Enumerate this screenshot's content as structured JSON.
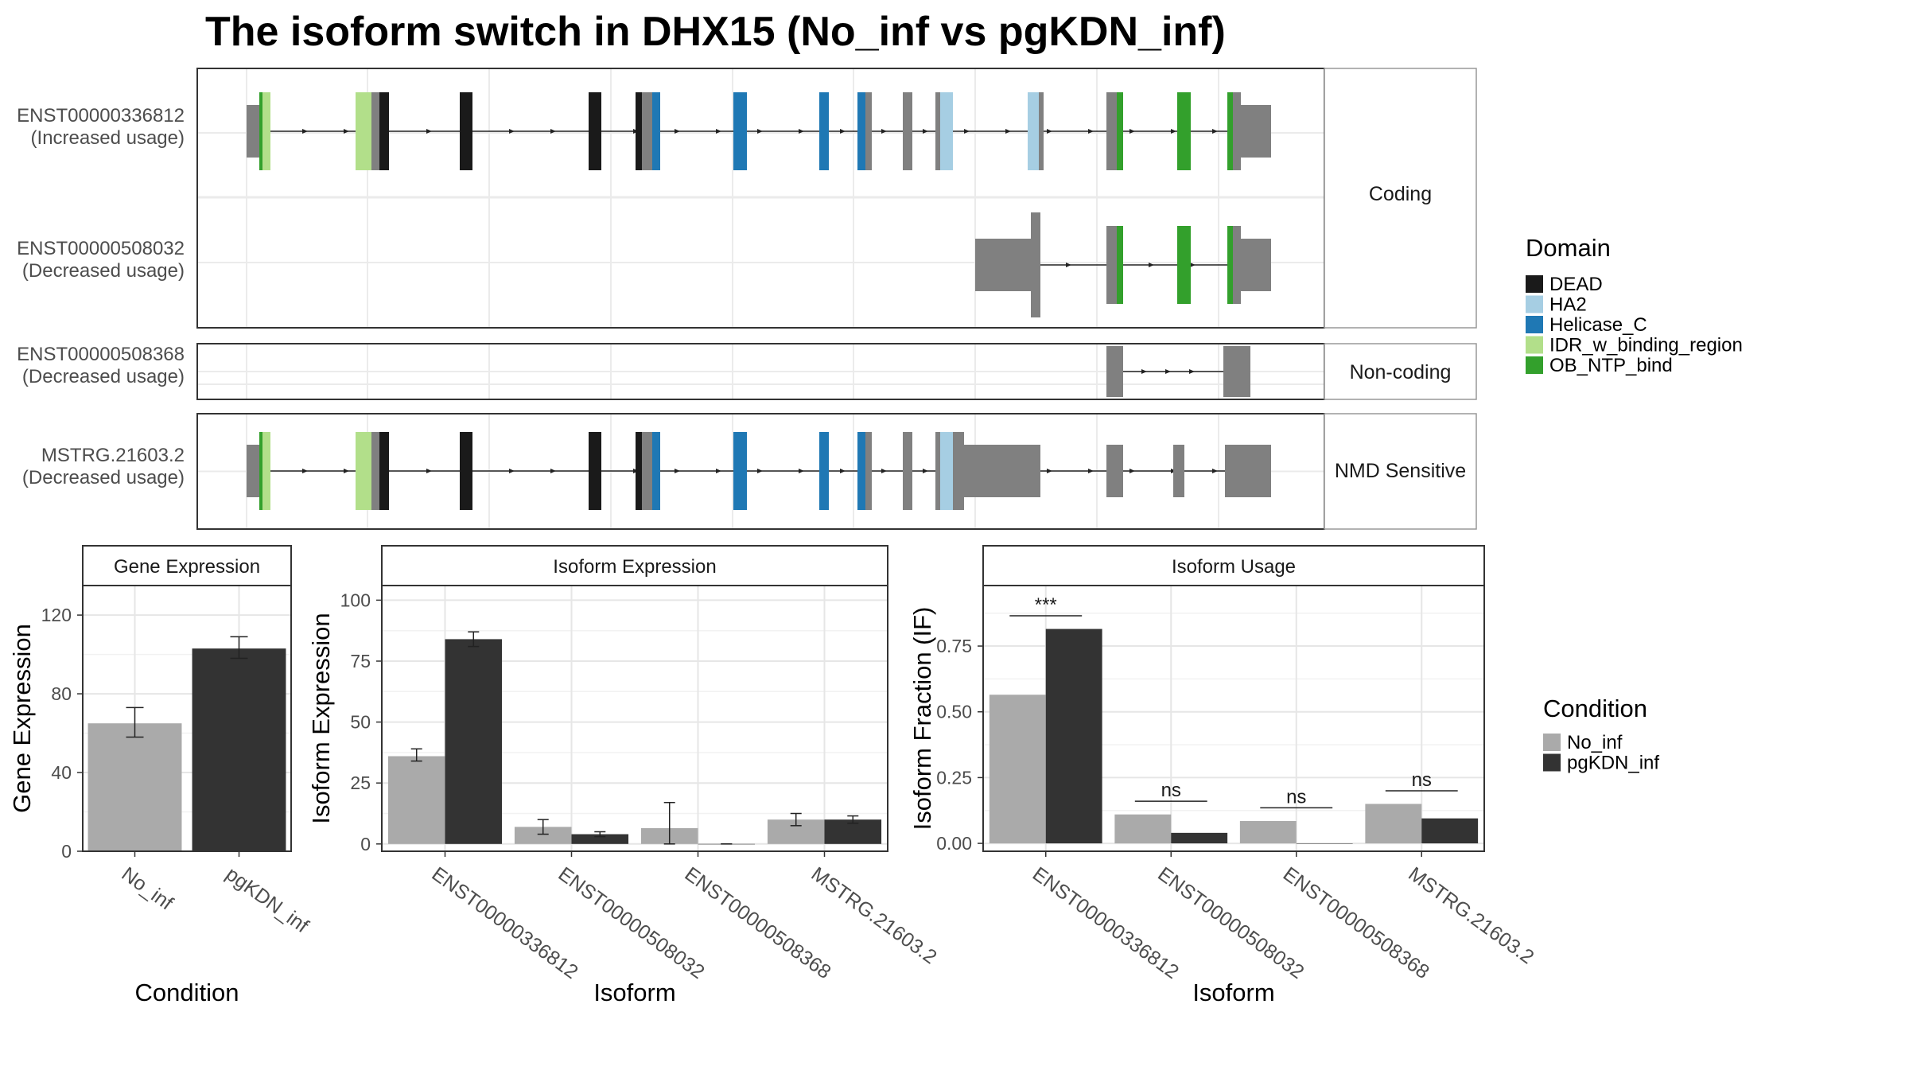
{
  "title": "The isoform switch in DHX15 (No_inf vs pgKDN_inf)",
  "colors": {
    "DEAD": "#1a1a1a",
    "HA2": "#a6cee3",
    "Helicase_C": "#1f78b4",
    "IDR_w_binding_region": "#b2df8a",
    "OB_NTP_bind": "#33a02c",
    "exon": "#808080",
    "No_inf": "#aaaaaa",
    "pgKDN_inf": "#333333"
  },
  "structure": {
    "groups": [
      {
        "label": "Coding",
        "isoforms": [
          {
            "id": "ENST00000336812",
            "usage": "(Increased usage)"
          },
          {
            "id": "ENST00000508032",
            "usage": "(Decreased usage)"
          }
        ]
      },
      {
        "label": "Non-coding",
        "isoforms": [
          {
            "id": "ENST00000508368",
            "usage": "(Decreased usage)"
          }
        ]
      },
      {
        "label": "NMD Sensitive",
        "isoforms": [
          {
            "id": "MSTRG.21603.2",
            "usage": "(Decreased usage)"
          }
        ]
      }
    ]
  },
  "legend_domain": {
    "title": "Domain",
    "items": [
      "DEAD",
      "HA2",
      "Helicase_C",
      "IDR_w_binding_region",
      "OB_NTP_bind"
    ]
  },
  "legend_condition": {
    "title": "Condition",
    "items": [
      "No_inf",
      "pgKDN_inf"
    ]
  },
  "chart_data": [
    {
      "type": "bar",
      "panel": "Gene Expression",
      "categories": [
        "No_inf",
        "pgKDN_inf"
      ],
      "values": [
        65,
        103
      ],
      "errors": [
        [
          58,
          73
        ],
        [
          98,
          109
        ]
      ],
      "xlabel": "Condition",
      "ylabel": "Gene Expression",
      "ylim": [
        0,
        135
      ],
      "yticks": [
        0,
        40,
        80,
        120
      ]
    },
    {
      "type": "bar",
      "panel": "Isoform Expression",
      "categories": [
        "ENST00000336812",
        "ENST00000508032",
        "ENST00000508368",
        "MSTRG.21603.2"
      ],
      "series": [
        {
          "name": "No_inf",
          "values": [
            36,
            7,
            6.5,
            10
          ],
          "errors": [
            [
              34,
              39
            ],
            [
              4,
              10
            ],
            [
              0,
              17
            ],
            [
              7.5,
              12.5
            ]
          ]
        },
        {
          "name": "pgKDN_inf",
          "values": [
            84,
            4,
            0,
            10
          ],
          "errors": [
            [
              81,
              87
            ],
            [
              3,
              5
            ],
            [
              0,
              0
            ],
            [
              8.5,
              11.5
            ]
          ]
        }
      ],
      "xlabel": "Isoform",
      "ylabel": "Isoform Expression",
      "ylim": [
        -3,
        106
      ],
      "yticks": [
        0,
        25,
        50,
        75,
        100
      ]
    },
    {
      "type": "bar",
      "panel": "Isoform Usage",
      "categories": [
        "ENST00000336812",
        "ENST00000508032",
        "ENST00000508368",
        "MSTRG.21603.2"
      ],
      "series": [
        {
          "name": "No_inf",
          "values": [
            0.565,
            0.11,
            0.085,
            0.15
          ]
        },
        {
          "name": "pgKDN_inf",
          "values": [
            0.815,
            0.04,
            0.0,
            0.095
          ]
        }
      ],
      "significance": [
        "***",
        "ns",
        "ns",
        "ns"
      ],
      "xlabel": "Isoform",
      "ylabel": "Isoform Fraction (IF)",
      "ylim": [
        -0.03,
        0.98
      ],
      "yticks": [
        0.0,
        0.25,
        0.5,
        0.75
      ],
      "ytick_labels": [
        "0.00",
        "0.25",
        "0.50",
        "0.75"
      ]
    }
  ]
}
